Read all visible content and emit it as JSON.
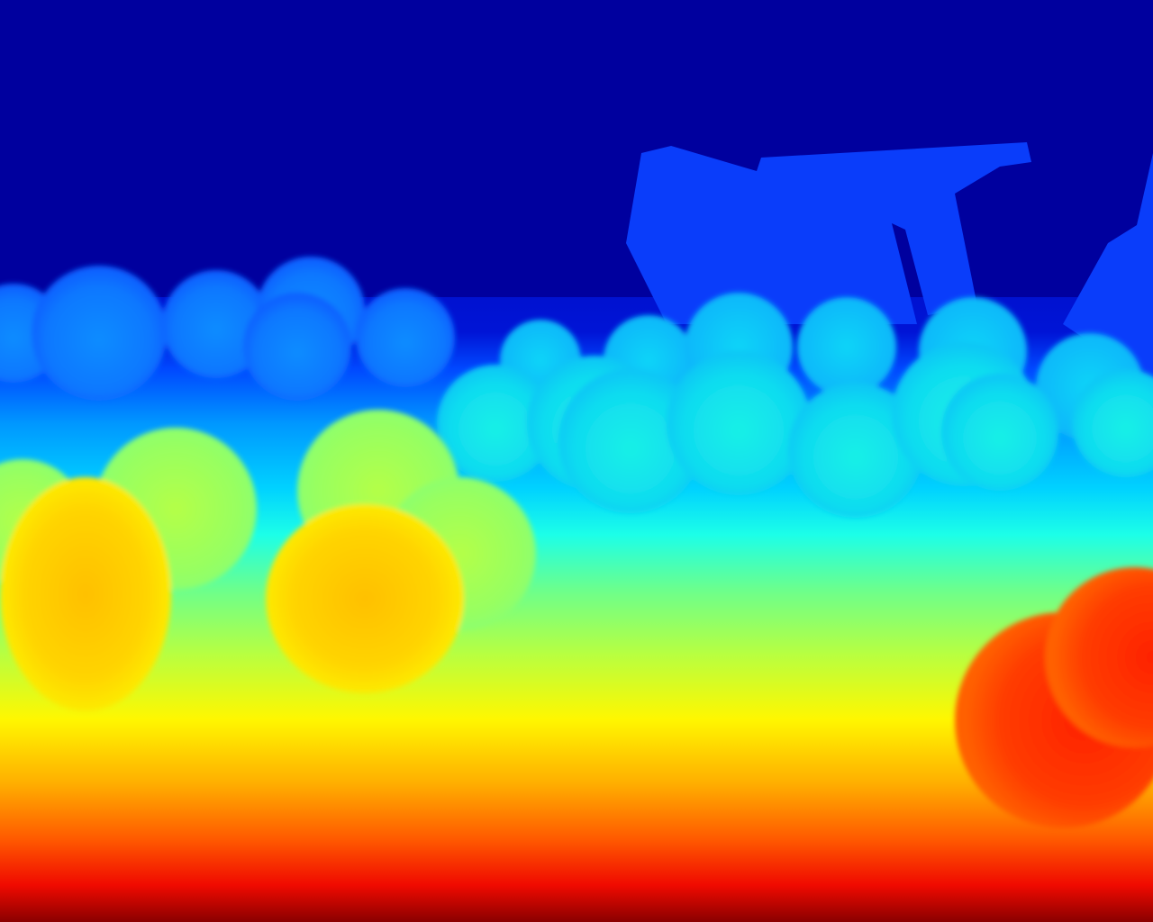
{
  "image": {
    "kind": "depth-map",
    "colormap": "jet",
    "colormap_stops": [
      "#00007f",
      "#0000ff",
      "#007fff",
      "#00ffff",
      "#7fff7f",
      "#ffff00",
      "#ff7f00",
      "#ff0000",
      "#7f0000"
    ],
    "sky_color": "#00009e",
    "structure_color": "#0a3dfa",
    "objects": {
      "structure": "boat-shape",
      "far_row": "fruit-far-row",
      "mid_row": "fruit-mid-row",
      "near_row": "fruit-near-row",
      "foreground": "fruit-foreground"
    }
  }
}
